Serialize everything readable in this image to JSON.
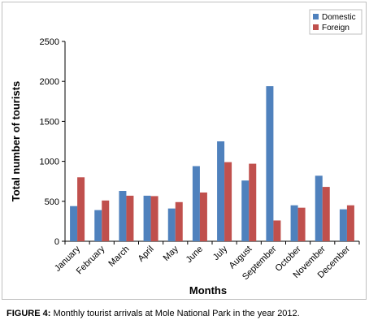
{
  "caption": {
    "label": "FIGURE 4:",
    "text": " Monthly tourist arrivals at Mole National Park in the year 2012."
  },
  "colors": {
    "domestic": "#4f81bd",
    "foreign": "#c0504d"
  },
  "chart_data": {
    "type": "bar",
    "xlabel": "Months",
    "ylabel": "Total number of tourists",
    "ylim": [
      0,
      2500
    ],
    "yticks": [
      0,
      500,
      1000,
      1500,
      2000,
      2500
    ],
    "grid": false,
    "legend_position": "top-right",
    "categories": [
      "January",
      "February",
      "March",
      "April",
      "May",
      "June",
      "July",
      "August",
      "September",
      "October",
      "November",
      "December"
    ],
    "series": [
      {
        "name": "Domestic",
        "values": [
          440,
          390,
          630,
          570,
          410,
          940,
          1250,
          760,
          1940,
          450,
          820,
          400
        ]
      },
      {
        "name": "Foreign",
        "values": [
          800,
          510,
          570,
          565,
          490,
          610,
          990,
          970,
          260,
          420,
          680,
          450
        ]
      }
    ]
  }
}
